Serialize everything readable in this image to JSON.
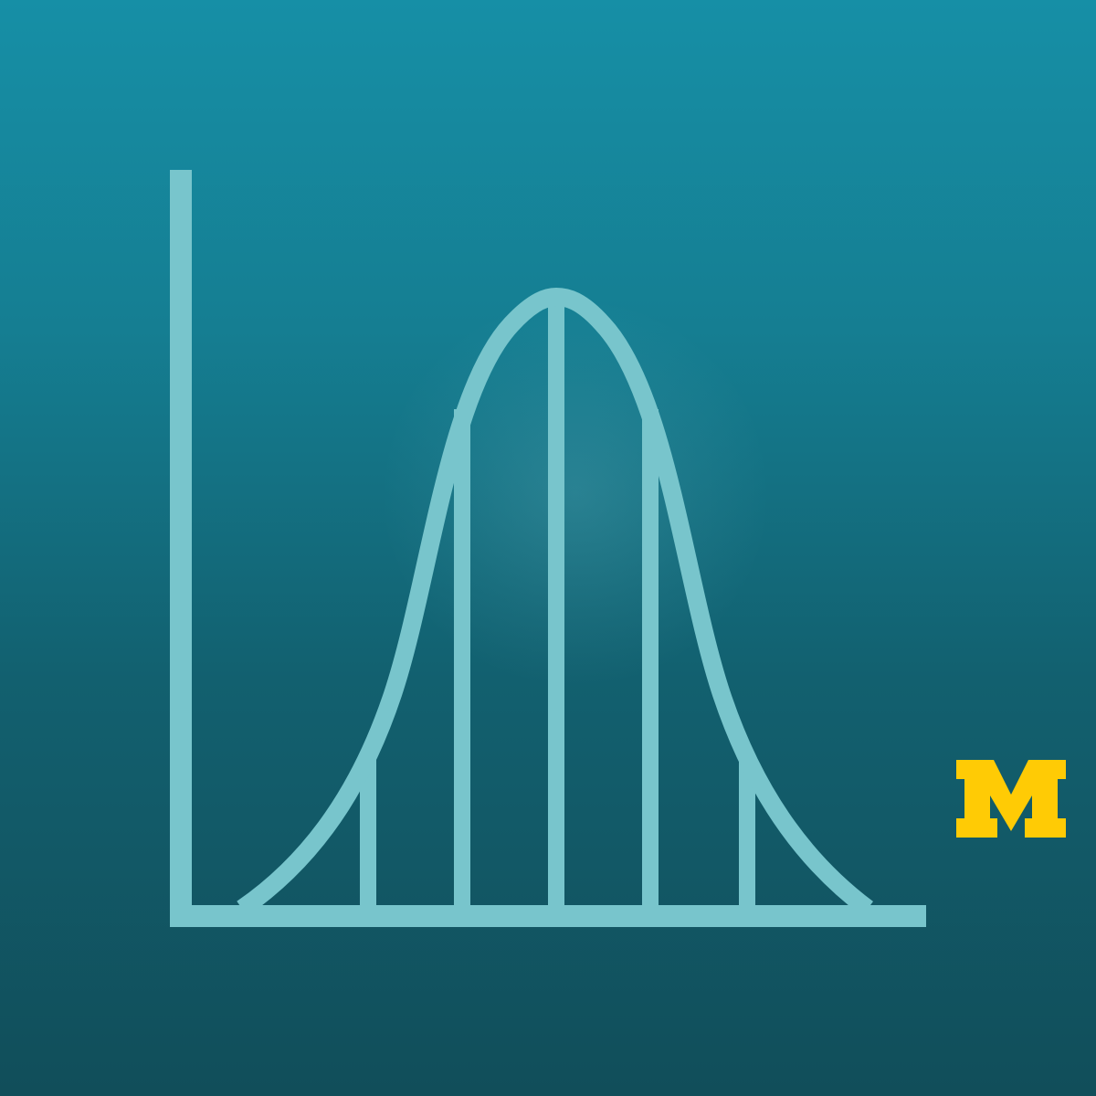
{
  "artwork": {
    "subject": "bell-curve-icon",
    "colors": {
      "background_top": "#168FA6",
      "background_bottom": "#114E5A",
      "line": "#78C5CC",
      "logo": "#FFCB05"
    }
  },
  "logo": {
    "text": "M",
    "icon": "block-m-logo"
  }
}
